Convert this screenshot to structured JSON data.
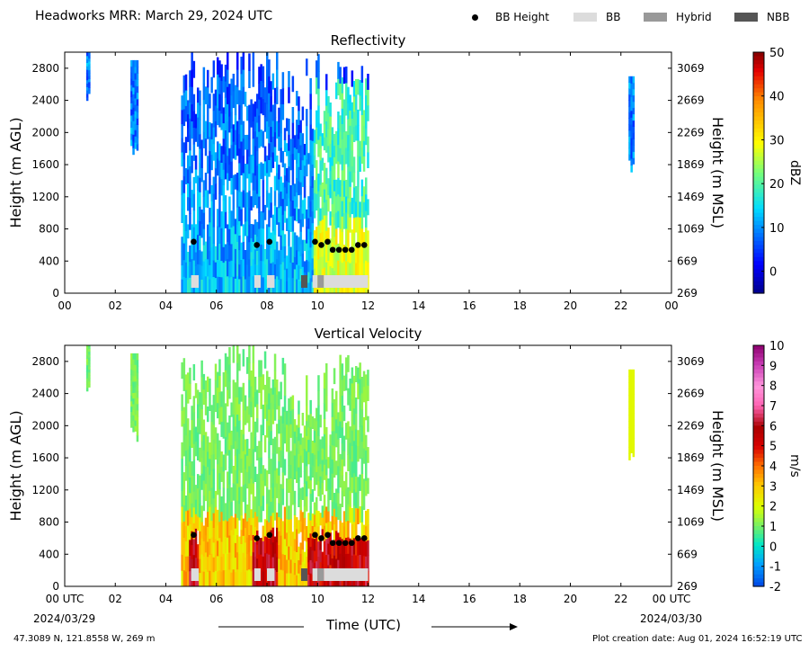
{
  "header": {
    "title": "Headworks MRR:  March 29, 2024 UTC",
    "legend": [
      {
        "label": "BB Height",
        "marker": "dot",
        "color": "#000000"
      },
      {
        "label": "BB",
        "marker": "box",
        "color": "#dcdcdc"
      },
      {
        "label": "Hybrid",
        "marker": "box",
        "color": "#999999"
      },
      {
        "label": "NBB",
        "marker": "box",
        "color": "#555555"
      }
    ]
  },
  "footer": {
    "location": "47.3089 N, 121.8558 W, 269 m",
    "created": "Plot creation date: Aug 01, 2024 16:52:19 UTC",
    "xlabel": "Time (UTC)",
    "date_start": "2024/03/29",
    "date_end": "2024/03/30"
  },
  "chart_data": [
    {
      "type": "heatmap",
      "title": "Reflectivity",
      "ylabel": "Height (m AGL)",
      "ylabel_right": "Height (m MSL)",
      "colorbar_label": "dBZ",
      "colorbar_ticks": [
        "50",
        "40",
        "30",
        "20",
        "10",
        "0"
      ],
      "colorbar_range": [
        -5,
        50
      ],
      "x_ticks": [
        "00",
        "02",
        "04",
        "06",
        "08",
        "10",
        "12",
        "14",
        "16",
        "18",
        "20",
        "22",
        "00"
      ],
      "y_ticks": [
        "0",
        "400",
        "800",
        "1200",
        "1600",
        "2000",
        "2400",
        "2800"
      ],
      "y_ticks_right": [
        "269",
        "669",
        "1069",
        "1469",
        "1869",
        "2269",
        "2669",
        "3069"
      ],
      "xlim": [
        0,
        24
      ],
      "ylim": [
        0,
        3000
      ],
      "echo_segments": [
        {
          "t0": 0.85,
          "t1": 0.95,
          "z0": 2300,
          "z1": 3000
        },
        {
          "t0": 2.6,
          "t1": 2.9,
          "z0": 1700,
          "z1": 2900
        },
        {
          "t0": 4.6,
          "t1": 12.0,
          "z0": 0,
          "z1": 3000
        },
        {
          "t0": 22.3,
          "t1": 22.5,
          "z0": 1500,
          "z1": 2700
        }
      ],
      "bright_band_heights": [
        {
          "t": 5.1,
          "h": 640
        },
        {
          "t": 7.6,
          "h": 600
        },
        {
          "t": 8.1,
          "h": 640
        },
        {
          "t": 9.9,
          "h": 640
        },
        {
          "t": 10.15,
          "h": 600
        },
        {
          "t": 10.4,
          "h": 640
        },
        {
          "t": 10.6,
          "h": 540
        },
        {
          "t": 10.85,
          "h": 540
        },
        {
          "t": 11.1,
          "h": 540
        },
        {
          "t": 11.35,
          "h": 540
        },
        {
          "t": 11.6,
          "h": 600
        },
        {
          "t": 11.85,
          "h": 600
        }
      ],
      "bb_type_bars": [
        {
          "t0": 5.0,
          "t1": 5.3,
          "type": "BB"
        },
        {
          "t0": 7.5,
          "t1": 7.75,
          "type": "BB"
        },
        {
          "t0": 8.0,
          "t1": 8.3,
          "type": "BB"
        },
        {
          "t0": 9.35,
          "t1": 9.6,
          "type": "NBB"
        },
        {
          "t0": 9.8,
          "t1": 10.0,
          "type": "BB"
        },
        {
          "t0": 10.0,
          "t1": 10.25,
          "type": "Hybrid"
        },
        {
          "t0": 10.25,
          "t1": 12.0,
          "type": "BB"
        }
      ]
    },
    {
      "type": "heatmap",
      "title": "Vertical Velocity",
      "ylabel": "Height (m AGL)",
      "ylabel_right": "Height (m MSL)",
      "colorbar_label": "m/s",
      "colorbar_ticks": [
        "10",
        "9",
        "8",
        "7",
        "6",
        "5",
        "4",
        "3",
        "2",
        "1",
        "0",
        "-1",
        "-2"
      ],
      "colorbar_range": [
        -2,
        10
      ],
      "x_ticks": [
        "00 UTC",
        "02",
        "04",
        "06",
        "08",
        "10",
        "12",
        "14",
        "16",
        "18",
        "20",
        "22",
        "00 UTC"
      ],
      "y_ticks": [
        "0",
        "400",
        "800",
        "1200",
        "1600",
        "2000",
        "2400",
        "2800"
      ],
      "y_ticks_right": [
        "269",
        "669",
        "1069",
        "1469",
        "1869",
        "2269",
        "2669",
        "3069"
      ],
      "xlim": [
        0,
        24
      ],
      "ylim": [
        0,
        3000
      ],
      "echo_segments": [
        {
          "t0": 0.85,
          "t1": 0.95,
          "z0": 2300,
          "z1": 3000
        },
        {
          "t0": 2.6,
          "t1": 2.9,
          "z0": 1800,
          "z1": 2900
        },
        {
          "t0": 4.6,
          "t1": 12.0,
          "z0": 0,
          "z1": 3000
        },
        {
          "t0": 22.3,
          "t1": 22.5,
          "z0": 1500,
          "z1": 2700
        }
      ],
      "bright_band_heights": [
        {
          "t": 5.1,
          "h": 640
        },
        {
          "t": 7.6,
          "h": 600
        },
        {
          "t": 8.1,
          "h": 640
        },
        {
          "t": 9.9,
          "h": 640
        },
        {
          "t": 10.15,
          "h": 600
        },
        {
          "t": 10.4,
          "h": 640
        },
        {
          "t": 10.6,
          "h": 540
        },
        {
          "t": 10.85,
          "h": 540
        },
        {
          "t": 11.1,
          "h": 540
        },
        {
          "t": 11.35,
          "h": 540
        },
        {
          "t": 11.6,
          "h": 600
        },
        {
          "t": 11.85,
          "h": 600
        }
      ],
      "bb_type_bars": [
        {
          "t0": 5.0,
          "t1": 5.3,
          "type": "BB"
        },
        {
          "t0": 7.5,
          "t1": 7.75,
          "type": "BB"
        },
        {
          "t0": 8.0,
          "t1": 8.3,
          "type": "BB"
        },
        {
          "t0": 9.35,
          "t1": 9.6,
          "type": "NBB"
        },
        {
          "t0": 9.8,
          "t1": 10.0,
          "type": "BB"
        },
        {
          "t0": 10.0,
          "t1": 10.25,
          "type": "Hybrid"
        },
        {
          "t0": 10.25,
          "t1": 12.0,
          "type": "BB"
        }
      ]
    }
  ]
}
